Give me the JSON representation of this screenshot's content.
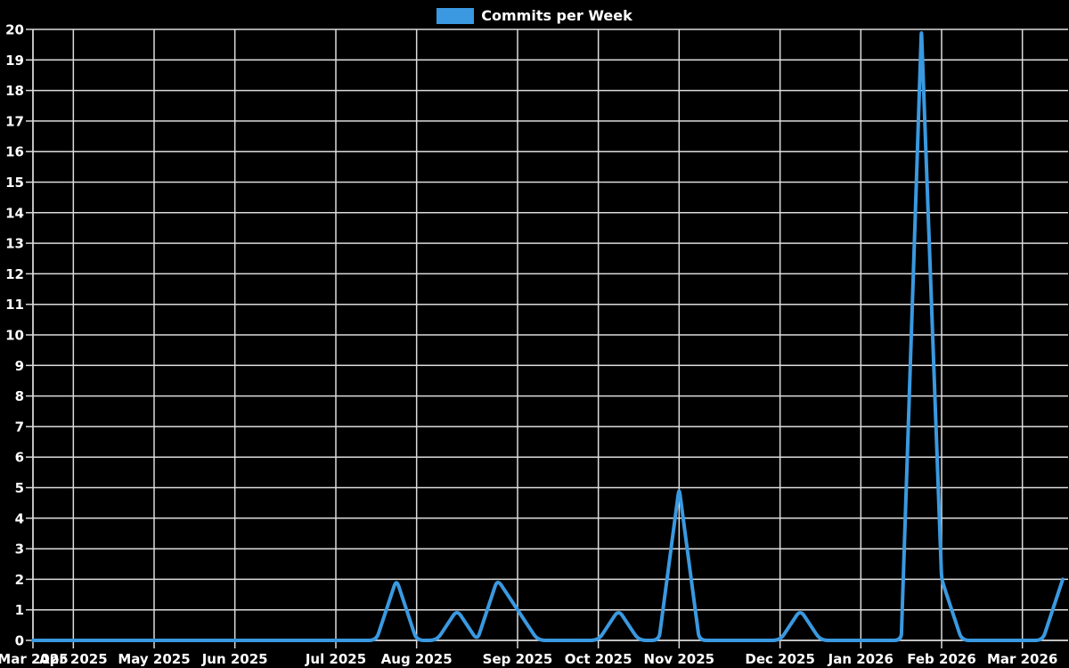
{
  "legend": {
    "label": "Commits per Week"
  },
  "colors": {
    "background": "#000000",
    "series": "#3a99e0",
    "grid": "#dcdcdc",
    "text": "#ffffff"
  },
  "chart_data": {
    "type": "line",
    "title": "",
    "xlabel": "",
    "ylabel": "",
    "series_name": "Commits per Week",
    "legend_position": "top-center",
    "grid": true,
    "ylim": [
      0,
      20
    ],
    "y_ticks": [
      0,
      1,
      2,
      3,
      4,
      5,
      6,
      7,
      8,
      9,
      10,
      11,
      12,
      13,
      14,
      15,
      16,
      17,
      18,
      19,
      20
    ],
    "x": [
      "2025-03-23",
      "2025-03-30",
      "2025-04-06",
      "2025-04-13",
      "2025-04-20",
      "2025-04-27",
      "2025-05-04",
      "2025-05-11",
      "2025-05-18",
      "2025-05-25",
      "2025-06-01",
      "2025-06-08",
      "2025-06-15",
      "2025-06-22",
      "2025-06-29",
      "2025-07-06",
      "2025-07-13",
      "2025-07-20",
      "2025-07-27",
      "2025-08-03",
      "2025-08-10",
      "2025-08-17",
      "2025-08-24",
      "2025-08-31",
      "2025-09-07",
      "2025-09-14",
      "2025-09-21",
      "2025-09-28",
      "2025-10-05",
      "2025-10-12",
      "2025-10-19",
      "2025-10-26",
      "2025-11-02",
      "2025-11-09",
      "2025-11-16",
      "2025-11-23",
      "2025-11-30",
      "2025-12-07",
      "2025-12-14",
      "2025-12-21",
      "2025-12-28",
      "2026-01-04",
      "2026-01-11",
      "2026-01-18",
      "2026-01-25",
      "2026-02-01",
      "2026-02-08",
      "2026-02-15",
      "2026-02-22",
      "2026-03-01",
      "2026-03-08",
      "2026-03-15"
    ],
    "values": [
      0,
      0,
      0,
      0,
      0,
      0,
      0,
      0,
      0,
      0,
      0,
      0,
      0,
      0,
      0,
      0,
      0,
      0,
      2,
      0,
      0,
      1,
      0,
      2,
      1,
      0,
      0,
      0,
      0,
      1,
      0,
      0,
      5,
      0,
      0,
      0,
      0,
      0,
      1,
      0,
      0,
      0,
      0,
      0,
      20,
      2,
      0,
      0,
      0,
      0,
      0,
      2
    ],
    "x_ticks": [
      {
        "index": 0,
        "label": "Mar 2025"
      },
      {
        "index": 2,
        "label": "Apr 2025"
      },
      {
        "index": 6,
        "label": "May 2025"
      },
      {
        "index": 10,
        "label": "Jun 2025"
      },
      {
        "index": 15,
        "label": "Jul 2025"
      },
      {
        "index": 19,
        "label": "Aug 2025"
      },
      {
        "index": 24,
        "label": "Sep 2025"
      },
      {
        "index": 28,
        "label": "Oct 2025"
      },
      {
        "index": 32,
        "label": "Nov 2025"
      },
      {
        "index": 37,
        "label": "Dec 2025"
      },
      {
        "index": 41,
        "label": "Jan 2026"
      },
      {
        "index": 45,
        "label": "Feb 2026"
      },
      {
        "index": 49,
        "label": "Mar 2026"
      }
    ]
  }
}
